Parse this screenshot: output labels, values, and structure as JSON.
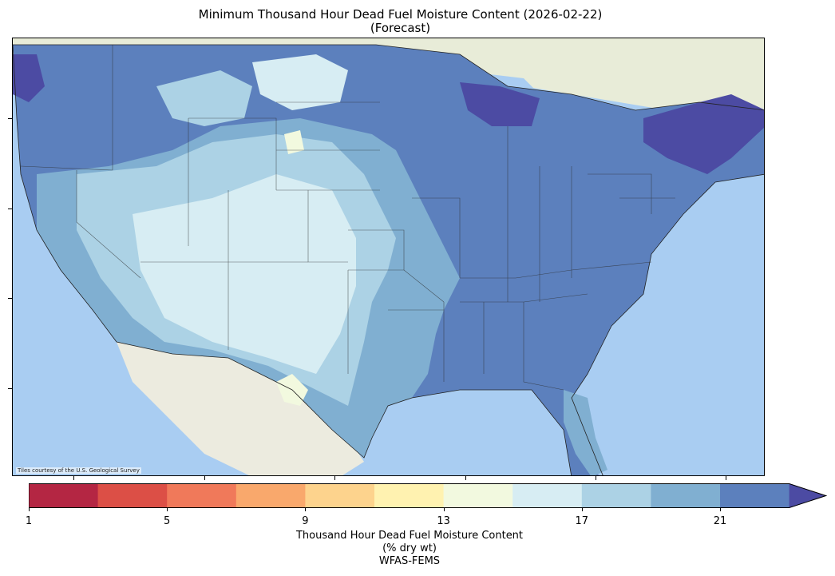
{
  "title": {
    "line1": "Minimum Thousand Hour Dead Fuel Moisture Content (2026-02-22)",
    "line2": "(Forecast)"
  },
  "map": {
    "attribution": "Tiles courtesy of the U.S. Geological Survey",
    "ocean_color": "#a9cdf2",
    "land_color": "#e9ece0",
    "region_labels": []
  },
  "colorbar": {
    "tick_labels": [
      "1",
      "5",
      "9",
      "13",
      "17",
      "21"
    ],
    "colors": [
      "#b42643",
      "#dc4f46",
      "#f0795a",
      "#f9a86c",
      "#fdd38d",
      "#fff2b0",
      "#f2f9df",
      "#d7edf3",
      "#acd2e5",
      "#80afd1",
      "#5c80bd",
      "#4c4ba3"
    ],
    "extend": "max",
    "label_line1": "Thousand Hour Dead Fuel Moisture Content",
    "label_line2": "(% dry wt)",
    "label_line3": "WFAS-FEMS"
  }
}
